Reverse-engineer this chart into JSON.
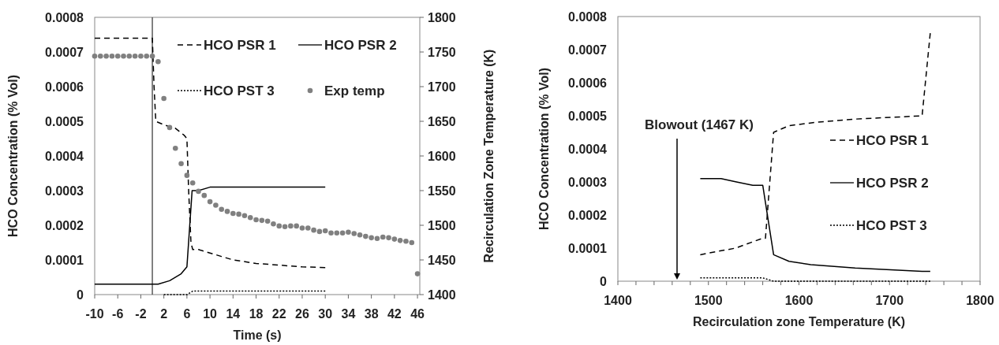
{
  "chart_data": [
    {
      "type": "line",
      "xlabel": "Time (s)",
      "ylabel": "HCO Concentration (% Vol)",
      "y2label": "Recirculation Zone Temperature (K)",
      "xlim": [
        -10,
        46.4
      ],
      "xticks": [
        -10,
        -6,
        -2,
        2,
        6,
        10,
        14,
        18,
        22,
        26,
        30,
        34,
        38,
        42,
        46
      ],
      "ylim": [
        0,
        0.0008
      ],
      "yticks": [
        0,
        0.0001,
        0.0002,
        0.0003,
        0.0004,
        0.0005,
        0.0006,
        0.0007,
        0.0008
      ],
      "y2lim": [
        1400,
        1800
      ],
      "y2ticks": [
        1400,
        1450,
        1500,
        1550,
        1600,
        1650,
        1700,
        1750,
        1800
      ],
      "grid": false,
      "legend": "top right",
      "ref_lines": [
        {
          "axis": "x",
          "value": 0,
          "color": "#404040"
        }
      ],
      "series": [
        {
          "name": "HCO PSR 1",
          "type": "line",
          "line_style": "dashed",
          "marker": "none",
          "color": "#000000",
          "x": [
            -10,
            0,
            0.3,
            0.6,
            2,
            4,
            5.5,
            6,
            6.3,
            6.7,
            7,
            8,
            10,
            12,
            14,
            18,
            22,
            26,
            30
          ],
          "values": [
            0.00074,
            0.00074,
            0.0006,
            0.0005,
            0.00049,
            0.00048,
            0.00046,
            0.00045,
            0.0003,
            0.00015,
            0.00013,
            0.00013,
            0.00012,
            0.00011,
            0.0001,
            9e-05,
            8.5e-05,
            8e-05,
            7.8e-05
          ]
        },
        {
          "name": "HCO PSR 2",
          "type": "line",
          "line_style": "solid",
          "marker": "none",
          "color": "#000000",
          "x": [
            -10,
            0,
            1,
            3,
            5,
            6,
            6.9,
            8,
            10,
            12,
            18,
            26,
            28,
            30
          ],
          "values": [
            3e-05,
            3e-05,
            3e-05,
            4e-05,
            6e-05,
            8e-05,
            0.0003,
            0.0003,
            0.00031,
            0.00031,
            0.00031,
            0.00031,
            0.00031,
            0.00031
          ]
        },
        {
          "name": "HCO PST 3",
          "type": "line",
          "line_style": "dotted",
          "marker": "none",
          "color": "#000000",
          "x": [
            2,
            6,
            7,
            14,
            30
          ],
          "values": [
            0,
            0,
            1e-05,
            1e-05,
            1e-05
          ]
        },
        {
          "name": "Exp temp",
          "type": "scatter",
          "marker": "circle",
          "axis": "y2",
          "color": "#808080",
          "x": [
            -10,
            -9,
            -8,
            -7,
            -6,
            -5,
            -4,
            -3,
            -2,
            -1,
            0,
            1,
            2,
            3,
            4,
            5,
            6,
            7,
            8,
            9,
            10,
            11,
            12,
            13,
            14,
            15,
            16,
            17,
            18,
            19,
            20,
            21,
            22,
            23,
            24,
            25,
            26,
            27,
            28,
            29,
            30,
            31,
            32,
            33,
            34,
            35,
            36,
            37,
            38,
            39,
            40,
            41,
            42,
            43,
            44,
            45,
            46
          ],
          "values": [
            1744,
            1744,
            1744,
            1744,
            1744,
            1744,
            1744,
            1744,
            1744,
            1744,
            1744,
            1736,
            1683,
            1641,
            1611,
            1589,
            1572,
            1561,
            1549,
            1543,
            1534,
            1529,
            1523,
            1520,
            1517,
            1516,
            1514,
            1511,
            1508,
            1507,
            1506,
            1502,
            1499,
            1498,
            1499,
            1499,
            1496,
            1496,
            1493,
            1491,
            1492,
            1489,
            1489,
            1489,
            1490,
            1488,
            1486,
            1484,
            1482,
            1481,
            1483,
            1482,
            1480,
            1478,
            1477,
            1475,
            1430
          ]
        }
      ]
    },
    {
      "type": "line",
      "xlabel": "Recirculation zone Temperature (K)",
      "ylabel": "HCO Concentration (% Vol)",
      "xlim": [
        1400,
        1800
      ],
      "xticks": [
        1400,
        {
          "value": 1420,
          "label": null
        },
        {
          "value": 1440,
          "label": null
        },
        {
          "value": 1460,
          "label": null
        },
        {
          "value": 1480,
          "label": null
        },
        1500,
        {
          "value": 1520,
          "label": null
        },
        {
          "value": 1540,
          "label": null
        },
        {
          "value": 1560,
          "label": null
        },
        {
          "value": 1580,
          "label": null
        },
        1600,
        {
          "value": 1620,
          "label": null
        },
        {
          "value": 1640,
          "label": null
        },
        {
          "value": 1660,
          "label": null
        },
        {
          "value": 1680,
          "label": null
        },
        1700,
        {
          "value": 1720,
          "label": null
        },
        {
          "value": 1740,
          "label": null
        },
        {
          "value": 1760,
          "label": null
        },
        {
          "value": 1780,
          "label": null
        },
        1800
      ],
      "ylim": [
        0,
        0.0008
      ],
      "yticks": [
        0,
        0.0001,
        0.0002,
        0.0003,
        0.0004,
        0.0005,
        0.0006,
        0.0007,
        0.0008
      ],
      "grid": false,
      "legend": "right",
      "annotations": [
        "Blowout (1467 K)"
      ],
      "series": [
        {
          "name": "HCO PSR 1",
          "type": "line",
          "line_style": "dashed",
          "marker": "none",
          "color": "#000000",
          "x": [
            1491,
            1510,
            1530,
            1550,
            1560,
            1563,
            1572,
            1589,
            1618,
            1662,
            1736,
            1745
          ],
          "values": [
            8e-05,
            9e-05,
            0.0001,
            0.00012,
            0.00013,
            0.00013,
            0.00045,
            0.00047,
            0.00048,
            0.00049,
            0.0005,
            0.00075
          ]
        },
        {
          "name": "HCO PSR 2",
          "type": "line",
          "line_style": "solid",
          "marker": "none",
          "color": "#000000",
          "x": [
            1491,
            1514,
            1531,
            1549,
            1560,
            1572,
            1589,
            1613,
            1662,
            1736,
            1745
          ],
          "values": [
            0.00031,
            0.00031,
            0.0003,
            0.00029,
            0.00029,
            8e-05,
            6e-05,
            5e-05,
            4e-05,
            3e-05,
            3e-05
          ]
        },
        {
          "name": "HCO PST 3",
          "type": "line",
          "line_style": "dotted",
          "marker": "none",
          "color": "#000000",
          "x": [
            1491,
            1530,
            1560,
            1572,
            1745
          ],
          "values": [
            1e-05,
            1e-05,
            1e-05,
            0,
            0
          ]
        }
      ]
    }
  ]
}
